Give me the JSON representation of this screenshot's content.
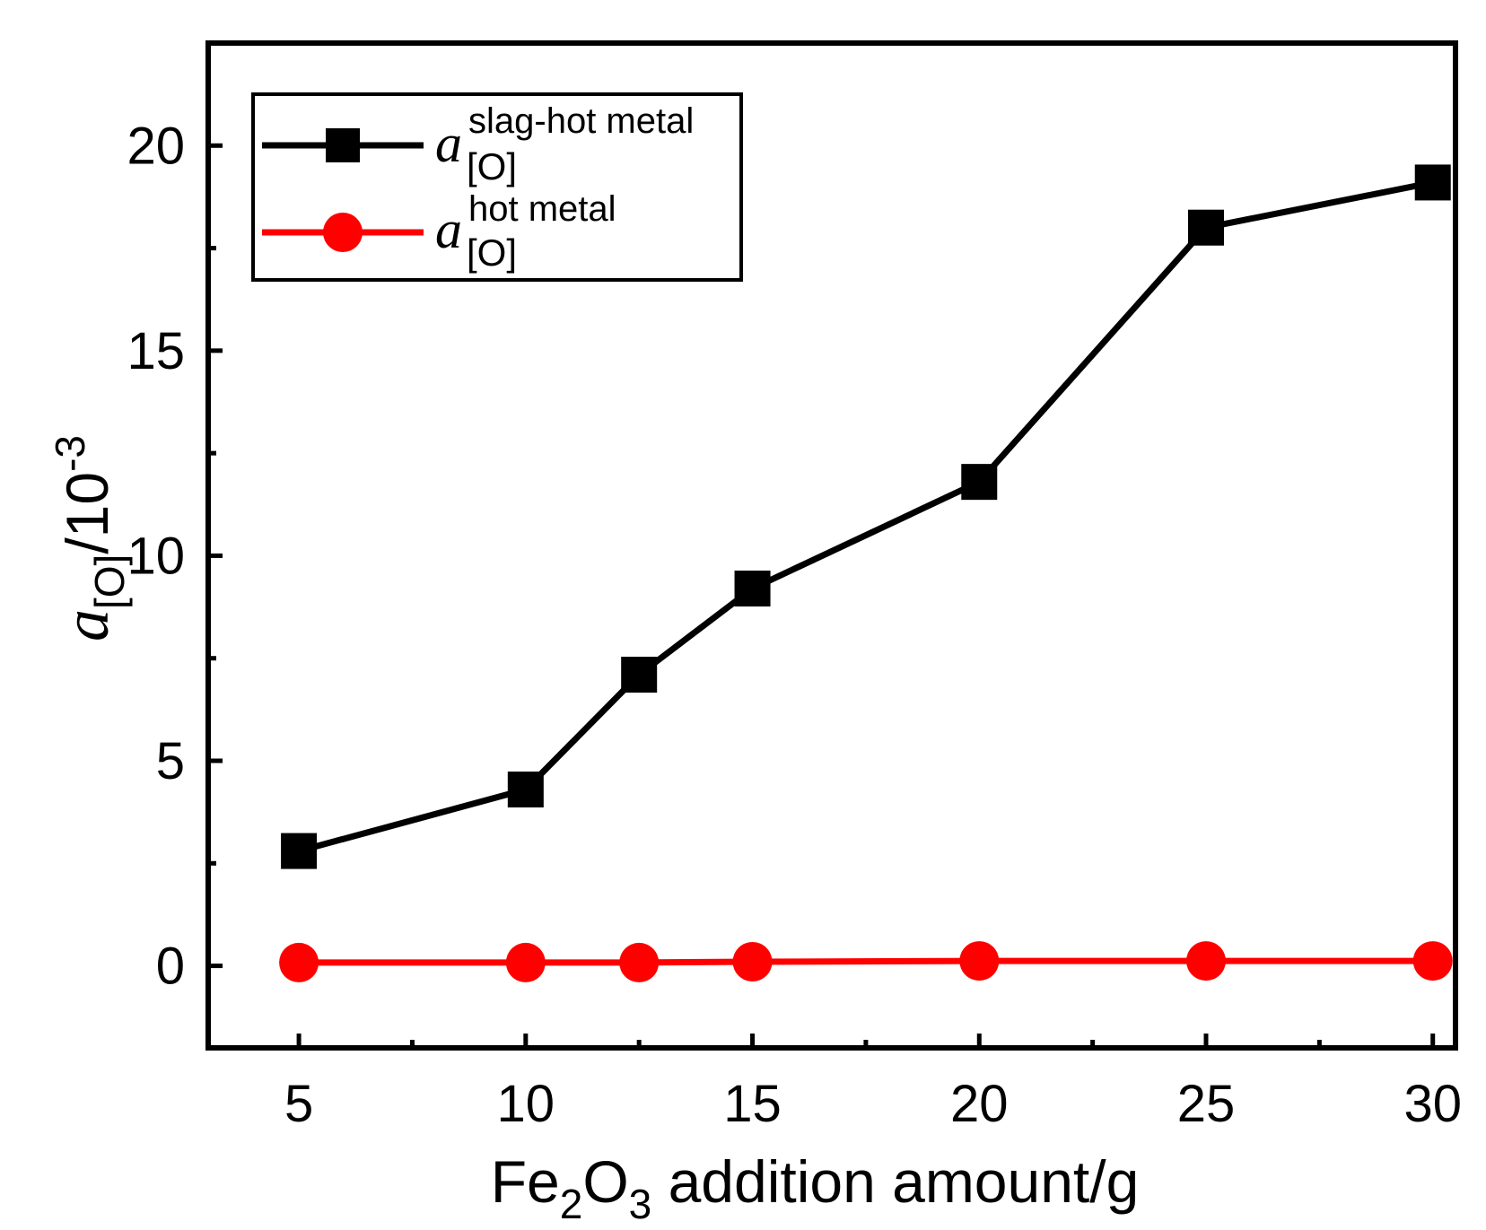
{
  "chart_data": {
    "type": "line",
    "title": "",
    "xlabel_main": "Fe",
    "xlabel_sub1": "2",
    "xlabel_mid": "O",
    "xlabel_sub2": "3",
    "xlabel_rest": " addition amount/g",
    "ylabel_symbol": "a",
    "ylabel_sub": "[O]",
    "ylabel_rest": "/10",
    "ylabel_sup": "-3",
    "xlim": [
      3,
      30.5
    ],
    "ylim": [
      -2,
      22.5
    ],
    "xticks": [
      5,
      10,
      15,
      20,
      25,
      30
    ],
    "xticks_minor": [
      7.5,
      12.5,
      17.5,
      22.5,
      27.5
    ],
    "yticks": [
      0,
      5,
      10,
      15,
      20
    ],
    "yticks_minor": [
      2.5,
      7.5,
      12.5,
      17.5
    ],
    "x": [
      5,
      10,
      12.5,
      15,
      20,
      25,
      30
    ],
    "series": [
      {
        "name": "slag-hot metal",
        "legend_symbol": "a",
        "legend_sup": "slag-hot metal",
        "legend_sub": "[O]",
        "color": "#000000",
        "marker": "square",
        "values": [
          2.8,
          4.3,
          7.1,
          9.2,
          11.8,
          18.0,
          19.1
        ]
      },
      {
        "name": "hot metal",
        "legend_symbol": "a",
        "legend_sup": "hot metal",
        "legend_sub": "[O]",
        "color": "#ff0000",
        "marker": "circle",
        "values": [
          0.08,
          0.08,
          0.08,
          0.1,
          0.12,
          0.12,
          0.12
        ]
      }
    ],
    "legend_location": "top-left"
  }
}
